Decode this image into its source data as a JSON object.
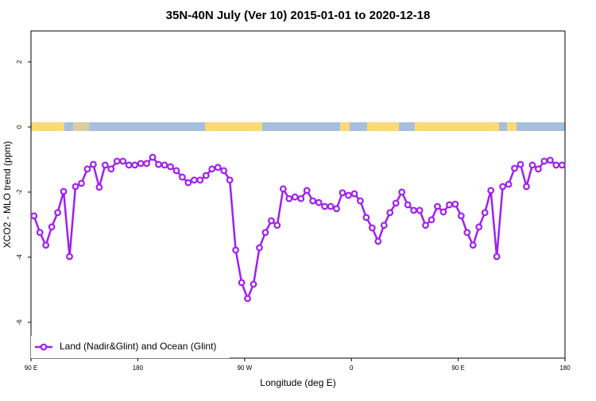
{
  "chart_data": {
    "type": "line",
    "title": "35N-40N July (Ver 10)   2015-01-01 to 2020-12-18",
    "x_label": "Longitude (deg E)",
    "y_label": "XCO2 - MLO trend (ppm)",
    "x": [
      92.5,
      97.5,
      102.5,
      107.5,
      112.5,
      117.5,
      122.5,
      127.5,
      132.5,
      137.5,
      142.5,
      147.5,
      152.5,
      157.5,
      162.5,
      167.5,
      172.5,
      177.5,
      182.5,
      187.5,
      192.5,
      197.5,
      202.5,
      207.5,
      212.5,
      217.5,
      222.5,
      227.5,
      232.5,
      237.5,
      242.5,
      247.5,
      252.5,
      257.5,
      262.5,
      267.5,
      272.5,
      277.5,
      282.5,
      287.5,
      292.5,
      297.5,
      302.5,
      307.5,
      312.5,
      317.5,
      322.5,
      327.5,
      332.5,
      337.5,
      342.5,
      347.5,
      352.5,
      357.5,
      362.5,
      367.5,
      372.5,
      377.5,
      382.5,
      387.5,
      392.5,
      397.5,
      402.5,
      407.5,
      412.5,
      417.5,
      422.5,
      427.5,
      432.5,
      437.5,
      442.5,
      447.5,
      452.5,
      457.5,
      462.5,
      467.5,
      472.5,
      477.5,
      482.5,
      487.5,
      492.5,
      497.5,
      502.5,
      507.5,
      512.5,
      517.5,
      522.5,
      527.5,
      532.5,
      537.5
    ],
    "series": [
      {
        "name": "Land (Nadir&Glint) and Ocean (Glint)",
        "color": "#a020f0",
        "values": [
          -2.73,
          -3.24,
          -3.63,
          -3.07,
          -2.63,
          -1.98,
          -3.98,
          -1.83,
          -1.73,
          -1.29,
          -1.15,
          -1.85,
          -1.17,
          -1.29,
          -1.05,
          -1.05,
          -1.17,
          -1.17,
          -1.12,
          -1.12,
          -0.93,
          -1.15,
          -1.17,
          -1.22,
          -1.34,
          -1.54,
          -1.71,
          -1.63,
          -1.63,
          -1.49,
          -1.29,
          -1.24,
          -1.34,
          -1.63,
          -3.78,
          -4.78,
          -5.27,
          -4.83,
          -3.71,
          -3.24,
          -2.88,
          -3.02,
          -1.9,
          -2.2,
          -2.15,
          -2.2,
          -1.95,
          -2.27,
          -2.32,
          -2.44,
          -2.44,
          -2.51,
          -2.02,
          -2.1,
          -2.05,
          -2.27,
          -2.78,
          -3.1,
          -3.51,
          -3.02,
          -2.63,
          -2.34,
          -2.0,
          -2.39,
          -2.56,
          -2.56,
          -3.02,
          -2.85,
          -2.44,
          -2.61,
          -2.39,
          -2.37,
          -2.73,
          -3.24,
          -3.63,
          -3.07,
          -2.63,
          -1.95,
          -3.98,
          -1.83,
          -1.76,
          -1.27,
          -1.15,
          -1.83,
          -1.17,
          -1.29,
          -1.05,
          -1.02,
          -1.17,
          -1.17
        ]
      }
    ],
    "xlim": [
      90,
      540
    ],
    "xticks": [
      {
        "value": 90,
        "label": "90 E"
      },
      180,
      {
        "value": 270,
        "label": "90 W"
      },
      {
        "value": 360,
        "label": "0"
      },
      {
        "value": 450,
        "label": "90 E"
      },
      {
        "value": 540,
        "label": "180"
      }
    ],
    "ylim": [
      -7.1,
      2.95
    ],
    "yticks": [
      -6,
      -4,
      -2,
      0,
      2
    ],
    "legend": "bottom-left"
  }
}
